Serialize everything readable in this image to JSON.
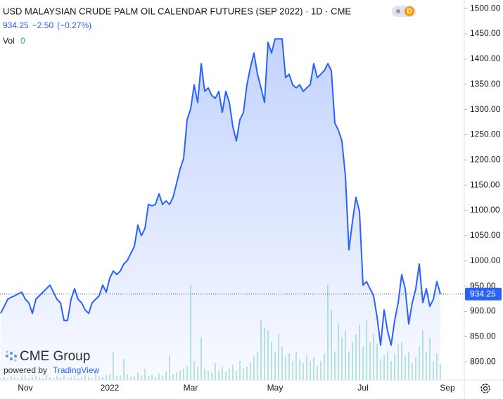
{
  "chart_data": {
    "type": "area",
    "title": "USD MALAYSIAN CRUDE PALM OIL CALENDAR FUTURES (SEP 2022) · 1D · CME",
    "badge": "D",
    "last_price": 934.25,
    "change": "−2.50",
    "change_pct": "(−0.27%)",
    "volume_label": "Vol",
    "volume_value": 0,
    "logo": "CME Group",
    "powered_by": "powered by",
    "powered_brand": "TradingView",
    "color": "#2962ff",
    "volume_color": "#8fd6c9",
    "categories": [
      null,
      null,
      null,
      null,
      null,
      null,
      null,
      "Nov",
      null,
      null,
      null,
      null,
      null,
      null,
      null,
      null,
      null,
      null,
      null,
      null,
      null,
      null,
      null,
      null,
      null,
      null,
      null,
      null,
      null,
      null,
      null,
      "2022",
      null,
      null,
      null,
      null,
      null,
      null,
      null,
      null,
      null,
      null,
      null,
      null,
      null,
      null,
      null,
      null,
      null,
      null,
      null,
      null,
      null,
      null,
      "Mar",
      null,
      null,
      null,
      null,
      null,
      null,
      null,
      null,
      null,
      null,
      null,
      null,
      null,
      null,
      null,
      null,
      null,
      null,
      null,
      null,
      null,
      null,
      null,
      "May",
      null,
      null,
      null,
      null,
      null,
      null,
      null,
      null,
      null,
      null,
      null,
      null,
      null,
      null,
      null,
      null,
      null,
      null,
      null,
      null,
      null,
      null,
      null,
      null,
      "Jul",
      null,
      null,
      null,
      null,
      null,
      null,
      null,
      null,
      null,
      null,
      null,
      null,
      null,
      null,
      null,
      null,
      null,
      null,
      null,
      null,
      null,
      null,
      null,
      "Sep"
    ],
    "values": [
      896,
      910,
      924,
      928,
      931,
      935,
      938,
      924,
      917,
      896,
      924,
      931,
      938,
      945,
      952,
      938,
      924,
      917,
      882,
      882,
      924,
      945,
      924,
      917,
      903,
      896,
      917,
      924,
      931,
      952,
      938,
      966,
      980,
      973,
      980,
      994,
      1001,
      1015,
      1029,
      1071,
      1050,
      1064,
      1112,
      1109,
      1112,
      1133,
      1112,
      1119,
      1112,
      1126,
      1154,
      1182,
      1203,
      1280,
      1301,
      1349,
      1314,
      1391,
      1336,
      1343,
      1328,
      1322,
      1336,
      1294,
      1336,
      1314,
      1266,
      1238,
      1280,
      1294,
      1349,
      1384,
      1412,
      1370,
      1343,
      1314,
      1433,
      1412,
      1440,
      1440,
      1440,
      1363,
      1370,
      1349,
      1343,
      1349,
      1336,
      1343,
      1349,
      1391,
      1363,
      1370,
      1377,
      1391,
      1377,
      1273,
      1259,
      1238,
      1168,
      1022,
      1078,
      1126,
      1098,
      952,
      959,
      945,
      931,
      889,
      833,
      903,
      861,
      833,
      882,
      917,
      973,
      945,
      875,
      917,
      945,
      994,
      917,
      945,
      910,
      924,
      959,
      934.25,
      null,
      null
    ],
    "volume": [
      2,
      3,
      2,
      4,
      3,
      2,
      3,
      5,
      2,
      3,
      4,
      3,
      2,
      6,
      3,
      2,
      4,
      3,
      5,
      2,
      3,
      4,
      2,
      3,
      5,
      3,
      2,
      8,
      4,
      3,
      5,
      6,
      30,
      4,
      5,
      22,
      6,
      3,
      4,
      8,
      5,
      12,
      4,
      6,
      3,
      7,
      5,
      9,
      26,
      6,
      8,
      10,
      12,
      15,
      100,
      20,
      14,
      45,
      12,
      10,
      8,
      18,
      10,
      14,
      9,
      12,
      16,
      10,
      20,
      12,
      14,
      18,
      25,
      30,
      63,
      55,
      52,
      40,
      30,
      48,
      35,
      25,
      28,
      20,
      30,
      22,
      18,
      26,
      20,
      24,
      15,
      20,
      28,
      100,
      74,
      30,
      60,
      45,
      52,
      30,
      40,
      48,
      58,
      35,
      63,
      40,
      48,
      38,
      22,
      26,
      30,
      20,
      28,
      38,
      40,
      25,
      30,
      18,
      24,
      35,
      52,
      30,
      45,
      20,
      28,
      17,
      null,
      null
    ],
    "ylim": [
      764,
      1517
    ],
    "yticks": [
      {
        "value": 800,
        "label": "800.00"
      },
      {
        "value": 850,
        "label": "850.00"
      },
      {
        "value": 900,
        "label": "900.00"
      },
      {
        "value": 950,
        "label": "950.00"
      },
      {
        "value": 1000,
        "label": "1000.00"
      },
      {
        "value": 1050,
        "label": "1050.00"
      },
      {
        "value": 1100,
        "label": "1100.00"
      },
      {
        "value": 1150,
        "label": "1150.00"
      },
      {
        "value": 1200,
        "label": "1200.00"
      },
      {
        "value": 1250,
        "label": "1250.00"
      },
      {
        "value": 1300,
        "label": "1300.00"
      },
      {
        "value": 1350,
        "label": "1350.00"
      },
      {
        "value": 1400,
        "label": "1400.00"
      },
      {
        "value": 1450,
        "label": "1450.00"
      },
      {
        "value": 1500,
        "label": "1500.00"
      }
    ]
  }
}
